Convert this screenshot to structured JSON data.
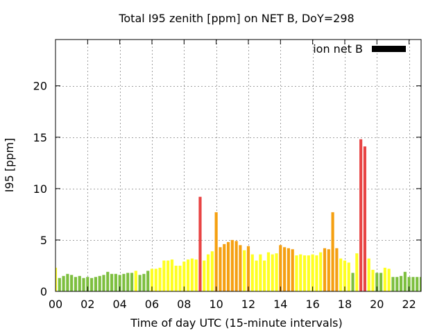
{
  "chart_data": {
    "type": "bar",
    "title": "Total I95 zenith [ppm] on NET B, DoY=298",
    "xlabel": "Time of day UTC (15-minute intervals)",
    "ylabel": "I95 [ppm]",
    "xlim": [
      0,
      22.75
    ],
    "ylim": [
      0,
      24.5
    ],
    "grid": true,
    "legend": {
      "position": "top-right",
      "label": "ion net B",
      "color": "#000000"
    },
    "x_ticks": [
      {
        "value": 0,
        "label": "00"
      },
      {
        "value": 2,
        "label": "02"
      },
      {
        "value": 4,
        "label": "04"
      },
      {
        "value": 6,
        "label": "06"
      },
      {
        "value": 8,
        "label": "08"
      },
      {
        "value": 10,
        "label": "10"
      },
      {
        "value": 12,
        "label": "12"
      },
      {
        "value": 14,
        "label": "14"
      },
      {
        "value": 16,
        "label": "16"
      },
      {
        "value": 18,
        "label": "18"
      },
      {
        "value": 20,
        "label": "20"
      },
      {
        "value": 22,
        "label": "22"
      }
    ],
    "y_ticks": [
      {
        "value": 0,
        "label": "0"
      },
      {
        "value": 5,
        "label": "5"
      },
      {
        "value": 10,
        "label": "10"
      },
      {
        "value": 15,
        "label": "15"
      },
      {
        "value": 20,
        "label": "20"
      }
    ],
    "interval_hours": 0.25,
    "bar_width_hours": 0.18,
    "color_scale": {
      "low": "#7dbf3f",
      "moderate": "#ffff22",
      "elevated": "#f5a011",
      "high": "#e84444"
    },
    "values": [
      2.3,
      1.3,
      1.5,
      1.7,
      1.6,
      1.4,
      1.5,
      1.3,
      1.4,
      1.3,
      1.4,
      1.5,
      1.6,
      1.9,
      1.7,
      1.7,
      1.6,
      1.7,
      1.8,
      1.8,
      2.0,
      1.6,
      1.7,
      2.0,
      2.2,
      2.2,
      2.3,
      3.0,
      3.0,
      3.1,
      2.5,
      2.5,
      2.9,
      3.1,
      3.2,
      3.1,
      9.2,
      3.0,
      3.6,
      3.9,
      7.7,
      4.3,
      4.6,
      4.8,
      5.0,
      4.9,
      4.5,
      4.0,
      4.4,
      3.6,
      3.0,
      3.6,
      3.0,
      3.8,
      3.6,
      3.7,
      4.5,
      4.3,
      4.2,
      4.1,
      3.5,
      3.6,
      3.5,
      3.5,
      3.6,
      3.5,
      3.8,
      4.2,
      4.1,
      7.7,
      4.2,
      3.2,
      3.0,
      2.8,
      1.8,
      3.7,
      14.8,
      14.1,
      3.2,
      2.1,
      1.8,
      1.8,
      2.3,
      2.2,
      1.4,
      1.4,
      1.5,
      1.9,
      1.4,
      1.4,
      1.4,
      1.4
    ],
    "levels": [
      "moderate",
      "low",
      "low",
      "low",
      "low",
      "low",
      "low",
      "low",
      "low",
      "low",
      "low",
      "low",
      "low",
      "low",
      "low",
      "low",
      "low",
      "low",
      "low",
      "low",
      "moderate",
      "low",
      "low",
      "low",
      "moderate",
      "moderate",
      "moderate",
      "moderate",
      "moderate",
      "moderate",
      "moderate",
      "moderate",
      "moderate",
      "moderate",
      "moderate",
      "moderate",
      "high",
      "moderate",
      "moderate",
      "moderate",
      "elevated",
      "elevated",
      "elevated",
      "elevated",
      "elevated",
      "elevated",
      "elevated",
      "moderate",
      "elevated",
      "moderate",
      "moderate",
      "moderate",
      "moderate",
      "moderate",
      "moderate",
      "moderate",
      "elevated",
      "elevated",
      "elevated",
      "elevated",
      "moderate",
      "moderate",
      "moderate",
      "moderate",
      "moderate",
      "moderate",
      "moderate",
      "elevated",
      "elevated",
      "elevated",
      "elevated",
      "moderate",
      "moderate",
      "moderate",
      "low",
      "moderate",
      "high",
      "high",
      "moderate",
      "moderate",
      "low",
      "low",
      "moderate",
      "moderate",
      "low",
      "low",
      "low",
      "low",
      "low",
      "low",
      "low",
      "low"
    ]
  }
}
